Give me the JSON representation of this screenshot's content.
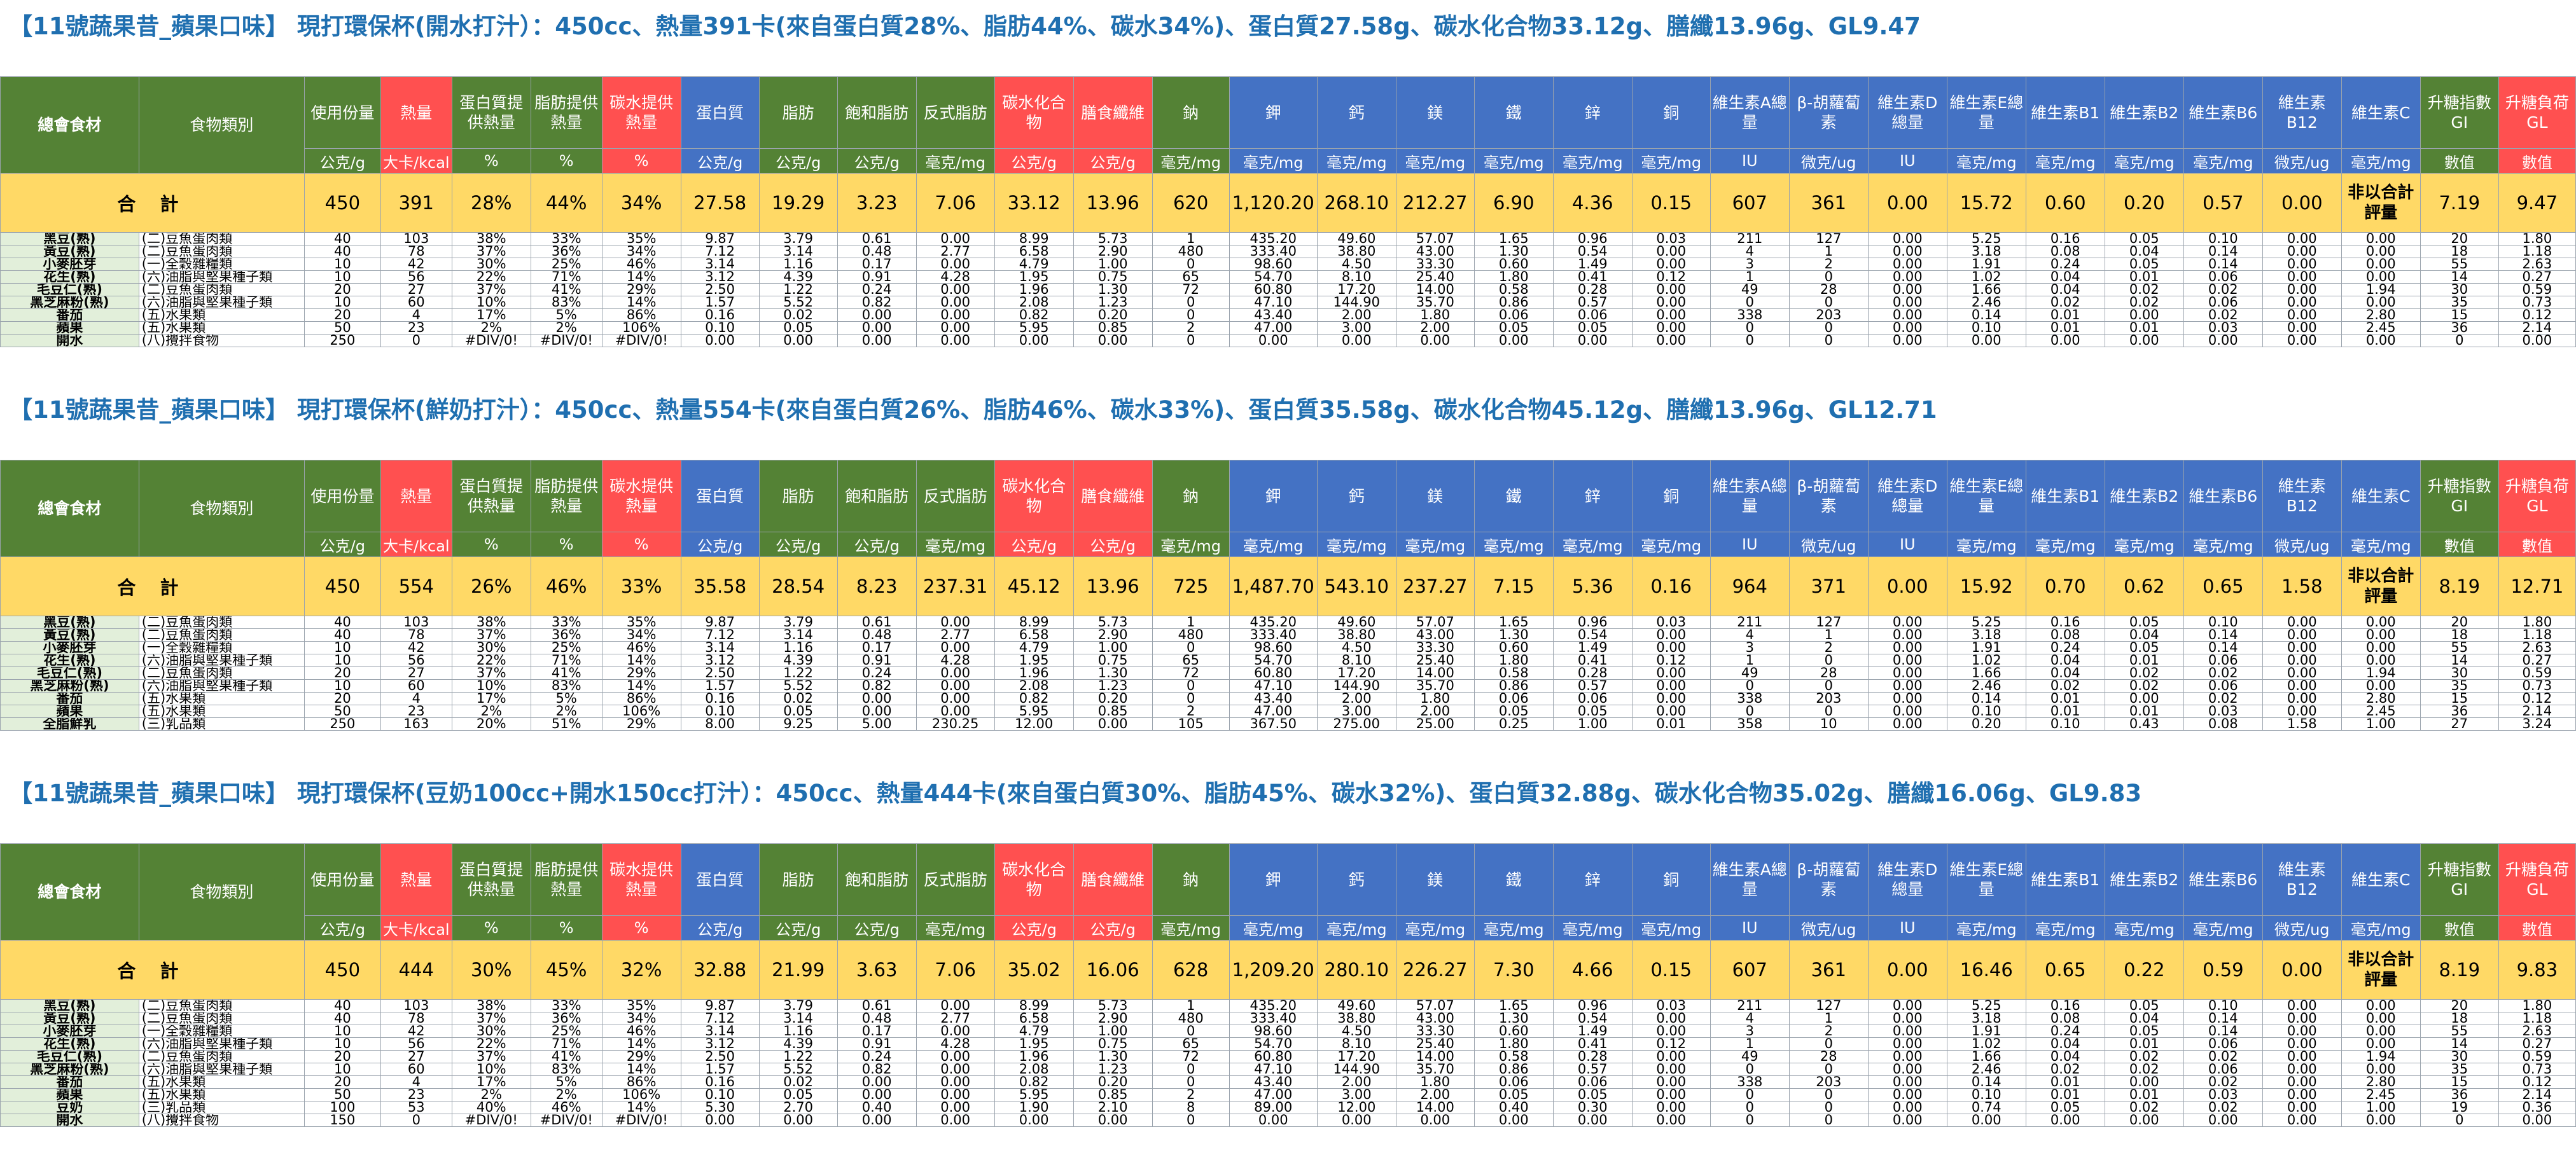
{
  "headers": {
    "labels": [
      "總會食材",
      "食物類別",
      "使用份量",
      "熱量",
      "蛋白質提供熱量",
      "脂肪提供熱量",
      "碳水提供熱量",
      "蛋白質",
      "脂肪",
      "飽和脂肪",
      "反式脂肪",
      "碳水化合物",
      "膳食纖維",
      "鈉",
      "鉀",
      "鈣",
      "鎂",
      "鐵",
      "鋅",
      "銅",
      "維生素A總量",
      "β-胡蘿蔔素",
      "維生素D總量",
      "維生素E總量",
      "維生素B1",
      "維生素B2",
      "維生素B6",
      "維生素B12",
      "維生素C",
      "升糖指數GI",
      "升糖負荷GL"
    ],
    "units": [
      "公克/g",
      "大卡/kcal",
      "%",
      "%",
      "%",
      "公克/g",
      "公克/g",
      "公克/g",
      "毫克/mg",
      "公克/g",
      "公克/g",
      "毫克/mg",
      "毫克/mg",
      "毫克/mg",
      "毫克/mg",
      "毫克/mg",
      "毫克/mg",
      "毫克/mg",
      "IU",
      "微克/ug",
      "IU",
      "毫克/mg",
      "毫克/mg",
      "毫克/mg",
      "毫克/mg",
      "微克/ug",
      "毫克/mg",
      "數值",
      "數值"
    ],
    "total_label": "合 計",
    "gi_note": "非以合計評量"
  },
  "colors": {
    "green": "#548235",
    "red": "#FF5050",
    "blue": "#4472C4",
    "total": "#FFD966",
    "title": "#1F6FB0"
  },
  "sections": [
    {
      "title": "【11號蔬果昔_蘋果口味】 現打環保杯(開水打汁）：450cc、熱量391卡(來自蛋白質28%、脂肪44%、碳水34%)、蛋白質27.58g、碳水化合物33.12g、膳纖13.96g、GL9.47",
      "total": [
        "450",
        "391",
        "28%",
        "44%",
        "34%",
        "27.58",
        "19.29",
        "3.23",
        "7.06",
        "33.12",
        "13.96",
        "620",
        "1,120.20",
        "268.10",
        "212.27",
        "6.90",
        "4.36",
        "0.15",
        "607",
        "361",
        "0.00",
        "15.72",
        "0.60",
        "0.20",
        "0.57",
        "0.00",
        "7.19",
        "9.47"
      ],
      "rows": [
        [
          "黑豆(熟)",
          "(二)豆魚蛋肉類",
          "40",
          "103",
          "38%",
          "33%",
          "35%",
          "9.87",
          "3.79",
          "0.61",
          "0.00",
          "8.99",
          "5.73",
          "1",
          "435.20",
          "49.60",
          "57.07",
          "1.65",
          "0.96",
          "0.03",
          "211",
          "127",
          "0.00",
          "5.25",
          "0.16",
          "0.05",
          "0.10",
          "0.00",
          "0.00",
          "20",
          "1.80"
        ],
        [
          "黃豆(熟)",
          "(二)豆魚蛋肉類",
          "40",
          "78",
          "37%",
          "36%",
          "34%",
          "7.12",
          "3.14",
          "0.48",
          "2.77",
          "6.58",
          "2.90",
          "480",
          "333.40",
          "38.80",
          "43.00",
          "1.30",
          "0.54",
          "0.00",
          "4",
          "1",
          "0.00",
          "3.18",
          "0.08",
          "0.04",
          "0.14",
          "0.00",
          "0.00",
          "18",
          "1.18"
        ],
        [
          "小麥胚芽",
          "(一)全穀雜糧類",
          "10",
          "42",
          "30%",
          "25%",
          "46%",
          "3.14",
          "1.16",
          "0.17",
          "0.00",
          "4.79",
          "1.00",
          "0",
          "98.60",
          "4.50",
          "33.30",
          "0.60",
          "1.49",
          "0.00",
          "3",
          "2",
          "0.00",
          "1.91",
          "0.24",
          "0.05",
          "0.14",
          "0.00",
          "0.00",
          "55",
          "2.63"
        ],
        [
          "花生(熟)",
          "(六)油脂與堅果種子類",
          "10",
          "56",
          "22%",
          "71%",
          "14%",
          "3.12",
          "4.39",
          "0.91",
          "4.28",
          "1.95",
          "0.75",
          "65",
          "54.70",
          "8.10",
          "25.40",
          "1.80",
          "0.41",
          "0.12",
          "1",
          "0",
          "0.00",
          "1.02",
          "0.04",
          "0.01",
          "0.06",
          "0.00",
          "0.00",
          "14",
          "0.27"
        ],
        [
          "毛豆仁(熟)",
          "(二)豆魚蛋肉類",
          "20",
          "27",
          "37%",
          "41%",
          "29%",
          "2.50",
          "1.22",
          "0.24",
          "0.00",
          "1.96",
          "1.30",
          "72",
          "60.80",
          "17.20",
          "14.00",
          "0.58",
          "0.28",
          "0.00",
          "49",
          "28",
          "0.00",
          "1.66",
          "0.04",
          "0.02",
          "0.02",
          "0.00",
          "1.94",
          "30",
          "0.59"
        ],
        [
          "黑芝麻粉(熟)",
          "(六)油脂與堅果種子類",
          "10",
          "60",
          "10%",
          "83%",
          "14%",
          "1.57",
          "5.52",
          "0.82",
          "0.00",
          "2.08",
          "1.23",
          "0",
          "47.10",
          "144.90",
          "35.70",
          "0.86",
          "0.57",
          "0.00",
          "0",
          "0",
          "0.00",
          "2.46",
          "0.02",
          "0.02",
          "0.06",
          "0.00",
          "0.00",
          "35",
          "0.73"
        ],
        [
          "番茄",
          "(五)水果類",
          "20",
          "4",
          "17%",
          "5%",
          "86%",
          "0.16",
          "0.02",
          "0.00",
          "0.00",
          "0.82",
          "0.20",
          "0",
          "43.40",
          "2.00",
          "1.80",
          "0.06",
          "0.06",
          "0.00",
          "338",
          "203",
          "0.00",
          "0.14",
          "0.01",
          "0.00",
          "0.02",
          "0.00",
          "2.80",
          "15",
          "0.12"
        ],
        [
          "蘋果",
          "(五)水果類",
          "50",
          "23",
          "2%",
          "2%",
          "106%",
          "0.10",
          "0.05",
          "0.00",
          "0.00",
          "5.95",
          "0.85",
          "2",
          "47.00",
          "3.00",
          "2.00",
          "0.05",
          "0.05",
          "0.00",
          "0",
          "0",
          "0.00",
          "0.10",
          "0.01",
          "0.01",
          "0.03",
          "0.00",
          "2.45",
          "36",
          "2.14"
        ],
        [
          "開水",
          "(八)攪拌食物",
          "250",
          "0",
          "#DIV/0!",
          "#DIV/0!",
          "#DIV/0!",
          "0.00",
          "0.00",
          "0.00",
          "0.00",
          "0.00",
          "0.00",
          "0",
          "0.00",
          "0.00",
          "0.00",
          "0.00",
          "0.00",
          "0.00",
          "0",
          "0",
          "0.00",
          "0.00",
          "0.00",
          "0.00",
          "0.00",
          "0.00",
          "0.00",
          "0",
          "0.00"
        ]
      ]
    },
    {
      "title": "【11號蔬果昔_蘋果口味】 現打環保杯(鮮奶打汁）：450cc、熱量554卡(來自蛋白質26%、脂肪46%、碳水33%)、蛋白質35.58g、碳水化合物45.12g、膳纖13.96g、GL12.71",
      "total": [
        "450",
        "554",
        "26%",
        "46%",
        "33%",
        "35.58",
        "28.54",
        "8.23",
        "237.31",
        "45.12",
        "13.96",
        "725",
        "1,487.70",
        "543.10",
        "237.27",
        "7.15",
        "5.36",
        "0.16",
        "964",
        "371",
        "0.00",
        "15.92",
        "0.70",
        "0.62",
        "0.65",
        "1.58",
        "8.19",
        "12.71"
      ],
      "rows": [
        [
          "黑豆(熟)",
          "(二)豆魚蛋肉類",
          "40",
          "103",
          "38%",
          "33%",
          "35%",
          "9.87",
          "3.79",
          "0.61",
          "0.00",
          "8.99",
          "5.73",
          "1",
          "435.20",
          "49.60",
          "57.07",
          "1.65",
          "0.96",
          "0.03",
          "211",
          "127",
          "0.00",
          "5.25",
          "0.16",
          "0.05",
          "0.10",
          "0.00",
          "0.00",
          "20",
          "1.80"
        ],
        [
          "黃豆(熟)",
          "(二)豆魚蛋肉類",
          "40",
          "78",
          "37%",
          "36%",
          "34%",
          "7.12",
          "3.14",
          "0.48",
          "2.77",
          "6.58",
          "2.90",
          "480",
          "333.40",
          "38.80",
          "43.00",
          "1.30",
          "0.54",
          "0.00",
          "4",
          "1",
          "0.00",
          "3.18",
          "0.08",
          "0.04",
          "0.14",
          "0.00",
          "0.00",
          "18",
          "1.18"
        ],
        [
          "小麥胚芽",
          "(一)全穀雜糧類",
          "10",
          "42",
          "30%",
          "25%",
          "46%",
          "3.14",
          "1.16",
          "0.17",
          "0.00",
          "4.79",
          "1.00",
          "0",
          "98.60",
          "4.50",
          "33.30",
          "0.60",
          "1.49",
          "0.00",
          "3",
          "2",
          "0.00",
          "1.91",
          "0.24",
          "0.05",
          "0.14",
          "0.00",
          "0.00",
          "55",
          "2.63"
        ],
        [
          "花生(熟)",
          "(六)油脂與堅果種子類",
          "10",
          "56",
          "22%",
          "71%",
          "14%",
          "3.12",
          "4.39",
          "0.91",
          "4.28",
          "1.95",
          "0.75",
          "65",
          "54.70",
          "8.10",
          "25.40",
          "1.80",
          "0.41",
          "0.12",
          "1",
          "0",
          "0.00",
          "1.02",
          "0.04",
          "0.01",
          "0.06",
          "0.00",
          "0.00",
          "14",
          "0.27"
        ],
        [
          "毛豆仁(熟)",
          "(二)豆魚蛋肉類",
          "20",
          "27",
          "37%",
          "41%",
          "29%",
          "2.50",
          "1.22",
          "0.24",
          "0.00",
          "1.96",
          "1.30",
          "72",
          "60.80",
          "17.20",
          "14.00",
          "0.58",
          "0.28",
          "0.00",
          "49",
          "28",
          "0.00",
          "1.66",
          "0.04",
          "0.02",
          "0.02",
          "0.00",
          "1.94",
          "30",
          "0.59"
        ],
        [
          "黑芝麻粉(熟)",
          "(六)油脂與堅果種子類",
          "10",
          "60",
          "10%",
          "83%",
          "14%",
          "1.57",
          "5.52",
          "0.82",
          "0.00",
          "2.08",
          "1.23",
          "0",
          "47.10",
          "144.90",
          "35.70",
          "0.86",
          "0.57",
          "0.00",
          "0",
          "0",
          "0.00",
          "2.46",
          "0.02",
          "0.02",
          "0.06",
          "0.00",
          "0.00",
          "35",
          "0.73"
        ],
        [
          "番茄",
          "(五)水果類",
          "20",
          "4",
          "17%",
          "5%",
          "86%",
          "0.16",
          "0.02",
          "0.00",
          "0.00",
          "0.82",
          "0.20",
          "0",
          "43.40",
          "2.00",
          "1.80",
          "0.06",
          "0.06",
          "0.00",
          "338",
          "203",
          "0.00",
          "0.14",
          "0.01",
          "0.00",
          "0.02",
          "0.00",
          "2.80",
          "15",
          "0.12"
        ],
        [
          "蘋果",
          "(五)水果類",
          "50",
          "23",
          "2%",
          "2%",
          "106%",
          "0.10",
          "0.05",
          "0.00",
          "0.00",
          "5.95",
          "0.85",
          "2",
          "47.00",
          "3.00",
          "2.00",
          "0.05",
          "0.05",
          "0.00",
          "0",
          "0",
          "0.00",
          "0.10",
          "0.01",
          "0.01",
          "0.03",
          "0.00",
          "2.45",
          "36",
          "2.14"
        ],
        [
          "全脂鮮乳",
          "(三)乳品類",
          "250",
          "163",
          "20%",
          "51%",
          "29%",
          "8.00",
          "9.25",
          "5.00",
          "230.25",
          "12.00",
          "0.00",
          "105",
          "367.50",
          "275.00",
          "25.00",
          "0.25",
          "1.00",
          "0.01",
          "358",
          "10",
          "0.00",
          "0.20",
          "0.10",
          "0.43",
          "0.08",
          "1.58",
          "1.00",
          "27",
          "3.24"
        ]
      ]
    },
    {
      "title": "【11號蔬果昔_蘋果口味】 現打環保杯(豆奶100cc+開水150cc打汁）：450cc、熱量444卡(來自蛋白質30%、脂肪45%、碳水32%)、蛋白質32.88g、碳水化合物35.02g、膳纖16.06g、GL9.83",
      "total": [
        "450",
        "444",
        "30%",
        "45%",
        "32%",
        "32.88",
        "21.99",
        "3.63",
        "7.06",
        "35.02",
        "16.06",
        "628",
        "1,209.20",
        "280.10",
        "226.27",
        "7.30",
        "4.66",
        "0.15",
        "607",
        "361",
        "0.00",
        "16.46",
        "0.65",
        "0.22",
        "0.59",
        "0.00",
        "8.19",
        "9.83"
      ],
      "rows": [
        [
          "黑豆(熟)",
          "(二)豆魚蛋肉類",
          "40",
          "103",
          "38%",
          "33%",
          "35%",
          "9.87",
          "3.79",
          "0.61",
          "0.00",
          "8.99",
          "5.73",
          "1",
          "435.20",
          "49.60",
          "57.07",
          "1.65",
          "0.96",
          "0.03",
          "211",
          "127",
          "0.00",
          "5.25",
          "0.16",
          "0.05",
          "0.10",
          "0.00",
          "0.00",
          "20",
          "1.80"
        ],
        [
          "黃豆(熟)",
          "(二)豆魚蛋肉類",
          "40",
          "78",
          "37%",
          "36%",
          "34%",
          "7.12",
          "3.14",
          "0.48",
          "2.77",
          "6.58",
          "2.90",
          "480",
          "333.40",
          "38.80",
          "43.00",
          "1.30",
          "0.54",
          "0.00",
          "4",
          "1",
          "0.00",
          "3.18",
          "0.08",
          "0.04",
          "0.14",
          "0.00",
          "0.00",
          "18",
          "1.18"
        ],
        [
          "小麥胚芽",
          "(一)全穀雜糧類",
          "10",
          "42",
          "30%",
          "25%",
          "46%",
          "3.14",
          "1.16",
          "0.17",
          "0.00",
          "4.79",
          "1.00",
          "0",
          "98.60",
          "4.50",
          "33.30",
          "0.60",
          "1.49",
          "0.00",
          "3",
          "2",
          "0.00",
          "1.91",
          "0.24",
          "0.05",
          "0.14",
          "0.00",
          "0.00",
          "55",
          "2.63"
        ],
        [
          "花生(熟)",
          "(六)油脂與堅果種子類",
          "10",
          "56",
          "22%",
          "71%",
          "14%",
          "3.12",
          "4.39",
          "0.91",
          "4.28",
          "1.95",
          "0.75",
          "65",
          "54.70",
          "8.10",
          "25.40",
          "1.80",
          "0.41",
          "0.12",
          "1",
          "0",
          "0.00",
          "1.02",
          "0.04",
          "0.01",
          "0.06",
          "0.00",
          "0.00",
          "14",
          "0.27"
        ],
        [
          "毛豆仁(熟)",
          "(二)豆魚蛋肉類",
          "20",
          "27",
          "37%",
          "41%",
          "29%",
          "2.50",
          "1.22",
          "0.24",
          "0.00",
          "1.96",
          "1.30",
          "72",
          "60.80",
          "17.20",
          "14.00",
          "0.58",
          "0.28",
          "0.00",
          "49",
          "28",
          "0.00",
          "1.66",
          "0.04",
          "0.02",
          "0.02",
          "0.00",
          "1.94",
          "30",
          "0.59"
        ],
        [
          "黑芝麻粉(熟)",
          "(六)油脂與堅果種子類",
          "10",
          "60",
          "10%",
          "83%",
          "14%",
          "1.57",
          "5.52",
          "0.82",
          "0.00",
          "2.08",
          "1.23",
          "0",
          "47.10",
          "144.90",
          "35.70",
          "0.86",
          "0.57",
          "0.00",
          "0",
          "0",
          "0.00",
          "2.46",
          "0.02",
          "0.02",
          "0.06",
          "0.00",
          "0.00",
          "35",
          "0.73"
        ],
        [
          "番茄",
          "(五)水果類",
          "20",
          "4",
          "17%",
          "5%",
          "86%",
          "0.16",
          "0.02",
          "0.00",
          "0.00",
          "0.82",
          "0.20",
          "0",
          "43.40",
          "2.00",
          "1.80",
          "0.06",
          "0.06",
          "0.00",
          "338",
          "203",
          "0.00",
          "0.14",
          "0.01",
          "0.00",
          "0.02",
          "0.00",
          "2.80",
          "15",
          "0.12"
        ],
        [
          "蘋果",
          "(五)水果類",
          "50",
          "23",
          "2%",
          "2%",
          "106%",
          "0.10",
          "0.05",
          "0.00",
          "0.00",
          "5.95",
          "0.85",
          "2",
          "47.00",
          "3.00",
          "2.00",
          "0.05",
          "0.05",
          "0.00",
          "0",
          "0",
          "0.00",
          "0.10",
          "0.01",
          "0.01",
          "0.03",
          "0.00",
          "2.45",
          "36",
          "2.14"
        ],
        [
          "豆奶",
          "(三)乳品類",
          "100",
          "53",
          "40%",
          "46%",
          "14%",
          "5.30",
          "2.70",
          "0.40",
          "0.00",
          "1.90",
          "2.10",
          "8",
          "89.00",
          "12.00",
          "14.00",
          "0.40",
          "0.30",
          "0.00",
          "0",
          "0",
          "0.00",
          "0.74",
          "0.05",
          "0.02",
          "0.02",
          "0.00",
          "1.00",
          "19",
          "0.36"
        ],
        [
          "開水",
          "(八)攪拌食物",
          "150",
          "0",
          "#DIV/0!",
          "#DIV/0!",
          "#DIV/0!",
          "0.00",
          "0.00",
          "0.00",
          "0.00",
          "0.00",
          "0.00",
          "0",
          "0.00",
          "0.00",
          "0.00",
          "0.00",
          "0.00",
          "0.00",
          "0",
          "0",
          "0.00",
          "0.00",
          "0.00",
          "0.00",
          "0.00",
          "0.00",
          "0.00",
          "0",
          "0.00"
        ]
      ]
    }
  ]
}
